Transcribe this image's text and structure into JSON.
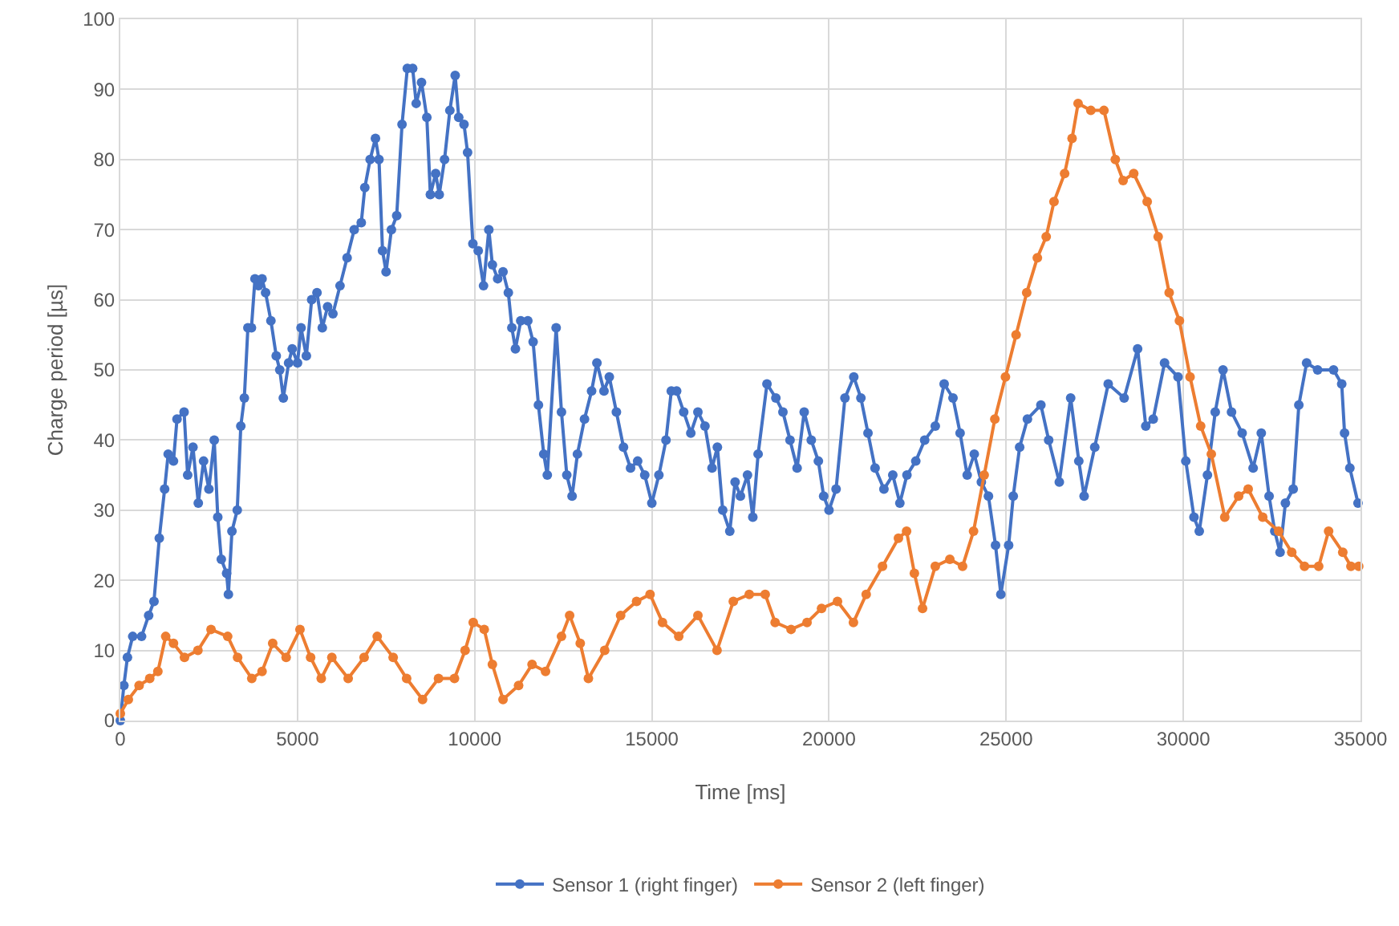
{
  "chart_data": {
    "type": "line",
    "xlabel": "Time [ms]",
    "ylabel": "Charge period [µs]",
    "xlim": [
      0,
      35000
    ],
    "xticks": [
      0,
      5000,
      10000,
      15000,
      20000,
      25000,
      30000,
      35000
    ],
    "ylim": [
      0,
      100
    ],
    "yticks": [
      0,
      10,
      20,
      30,
      40,
      50,
      60,
      70,
      80,
      90,
      100
    ],
    "grid": true,
    "legend": "bottom",
    "marker": "circle",
    "line_style": "solid",
    "series": [
      {
        "name": "Sensor 1 (right finger)",
        "color": "#4472c4",
        "x": [
          0,
          100,
          200,
          350,
          600,
          800,
          950,
          1100,
          1250,
          1350,
          1500,
          1600,
          1800,
          1900,
          2050,
          2200,
          2350,
          2500,
          2650,
          2750,
          2850,
          3000,
          3050,
          3150,
          3300,
          3400,
          3500,
          3600,
          3700,
          3800,
          3900,
          4000,
          4100,
          4250,
          4400,
          4500,
          4600,
          4750,
          4850,
          5000,
          5100,
          5250,
          5400,
          5550,
          5700,
          5850,
          6000,
          6200,
          6400,
          6600,
          6800,
          6900,
          7050,
          7200,
          7300,
          7400,
          7500,
          7650,
          7800,
          7950,
          8100,
          8250,
          8350,
          8500,
          8650,
          8750,
          8900,
          9000,
          9150,
          9300,
          9450,
          9550,
          9700,
          9800,
          9950,
          10100,
          10250,
          10400,
          10500,
          10650,
          10800,
          10950,
          11050,
          11150,
          11300,
          11500,
          11650,
          11800,
          11950,
          12050,
          12300,
          12450,
          12600,
          12750,
          12900,
          13100,
          13300,
          13450,
          13650,
          13800,
          14000,
          14200,
          14400,
          14600,
          14800,
          15000,
          15200,
          15400,
          15550,
          15700,
          15900,
          16100,
          16300,
          16500,
          16700,
          16850,
          17000,
          17200,
          17350,
          17500,
          17700,
          17850,
          18000,
          18250,
          18500,
          18700,
          18900,
          19100,
          19300,
          19500,
          19700,
          19850,
          20000,
          20200,
          20450,
          20700,
          20900,
          21100,
          21300,
          21550,
          21800,
          22000,
          22200,
          22450,
          22700,
          23000,
          23250,
          23500,
          23700,
          23900,
          24100,
          24300,
          24500,
          24700,
          24850,
          25070,
          25200,
          25380,
          25600,
          25980,
          26200,
          26500,
          26820,
          27050,
          27200,
          27500,
          27880,
          28330,
          28710,
          28940,
          29150,
          29470,
          29850,
          30070,
          30300,
          30450,
          30680,
          30900,
          31120,
          31360,
          31660,
          31970,
          32200,
          32420,
          32580,
          32730,
          32880,
          33100,
          33260,
          33480,
          33790,
          34240,
          34470,
          34550,
          34700,
          34930
        ],
        "values": [
          0,
          5,
          9,
          12,
          12,
          15,
          17,
          26,
          33,
          38,
          37,
          43,
          44,
          35,
          39,
          31,
          37,
          33,
          40,
          29,
          23,
          21,
          18,
          27,
          30,
          42,
          46,
          56,
          56,
          63,
          62,
          63,
          61,
          57,
          52,
          50,
          46,
          51,
          53,
          51,
          56,
          52,
          60,
          61,
          56,
          59,
          58,
          62,
          66,
          70,
          71,
          76,
          80,
          83,
          80,
          67,
          64,
          70,
          72,
          85,
          93,
          93,
          88,
          91,
          86,
          75,
          78,
          75,
          80,
          87,
          92,
          86,
          85,
          81,
          68,
          67,
          62,
          70,
          65,
          63,
          64,
          61,
          56,
          53,
          57,
          57,
          54,
          45,
          38,
          35,
          56,
          44,
          35,
          32,
          38,
          43,
          47,
          51,
          47,
          49,
          44,
          39,
          36,
          37,
          35,
          31,
          35,
          40,
          47,
          47,
          44,
          41,
          44,
          42,
          36,
          39,
          30,
          27,
          34,
          32,
          35,
          29,
          38,
          48,
          46,
          44,
          40,
          36,
          44,
          40,
          37,
          32,
          30,
          33,
          46,
          49,
          46,
          41,
          36,
          33,
          35,
          31,
          35,
          37,
          40,
          42,
          48,
          46,
          41,
          35,
          38,
          34,
          32,
          25,
          18,
          25,
          32,
          39,
          43,
          45,
          40,
          34,
          46,
          37,
          32,
          39,
          48,
          46,
          53,
          42,
          43,
          51,
          49,
          37,
          29,
          27,
          35,
          44,
          50,
          44,
          41,
          36,
          41,
          32,
          27,
          24,
          31,
          33,
          45,
          51,
          50,
          50,
          48,
          41,
          36,
          31
        ]
      },
      {
        "name": "Sensor 2 (left finger)",
        "color": "#ed7d31",
        "x": [
          0,
          226,
          530,
          830,
          1060,
          1280,
          1500,
          1810,
          2190,
          2560,
          3030,
          3310,
          3710,
          4000,
          4300,
          4680,
          5070,
          5370,
          5670,
          5970,
          6430,
          6880,
          7250,
          7700,
          8080,
          8530,
          8980,
          9430,
          9730,
          9960,
          10270,
          10500,
          10800,
          11240,
          11620,
          12000,
          12450,
          12680,
          12980,
          13210,
          13670,
          14120,
          14570,
          14950,
          15300,
          15760,
          16300,
          16840,
          17300,
          17750,
          18200,
          18480,
          18930,
          19380,
          19790,
          20240,
          20690,
          21050,
          21510,
          21960,
          22190,
          22410,
          22640,
          23000,
          23410,
          23770,
          24080,
          24380,
          24680,
          24980,
          25280,
          25580,
          25880,
          26130,
          26350,
          26650,
          26860,
          27030,
          27390,
          27760,
          28080,
          28300,
          28600,
          28980,
          29290,
          29600,
          29890,
          30190,
          30490,
          30790,
          31170,
          31560,
          31830,
          32240,
          32690,
          33060,
          33420,
          33820,
          34100,
          34500,
          34730,
          34950
        ],
        "values": [
          1,
          3,
          5,
          6,
          7,
          12,
          11,
          9,
          10,
          13,
          12,
          9,
          6,
          7,
          11,
          9,
          13,
          9,
          6,
          9,
          6,
          9,
          12,
          9,
          6,
          3,
          6,
          6,
          10,
          14,
          13,
          8,
          3,
          5,
          8,
          7,
          12,
          15,
          11,
          6,
          10,
          15,
          17,
          18,
          14,
          12,
          15,
          10,
          17,
          18,
          18,
          14,
          13,
          14,
          16,
          17,
          14,
          18,
          22,
          26,
          27,
          21,
          16,
          22,
          23,
          22,
          27,
          35,
          43,
          49,
          55,
          61,
          66,
          69,
          74,
          78,
          83,
          88,
          87,
          87,
          80,
          77,
          78,
          74,
          69,
          61,
          57,
          49,
          42,
          38,
          29,
          32,
          33,
          29,
          27,
          24,
          22,
          22,
          27,
          24,
          22,
          22
        ]
      }
    ]
  }
}
